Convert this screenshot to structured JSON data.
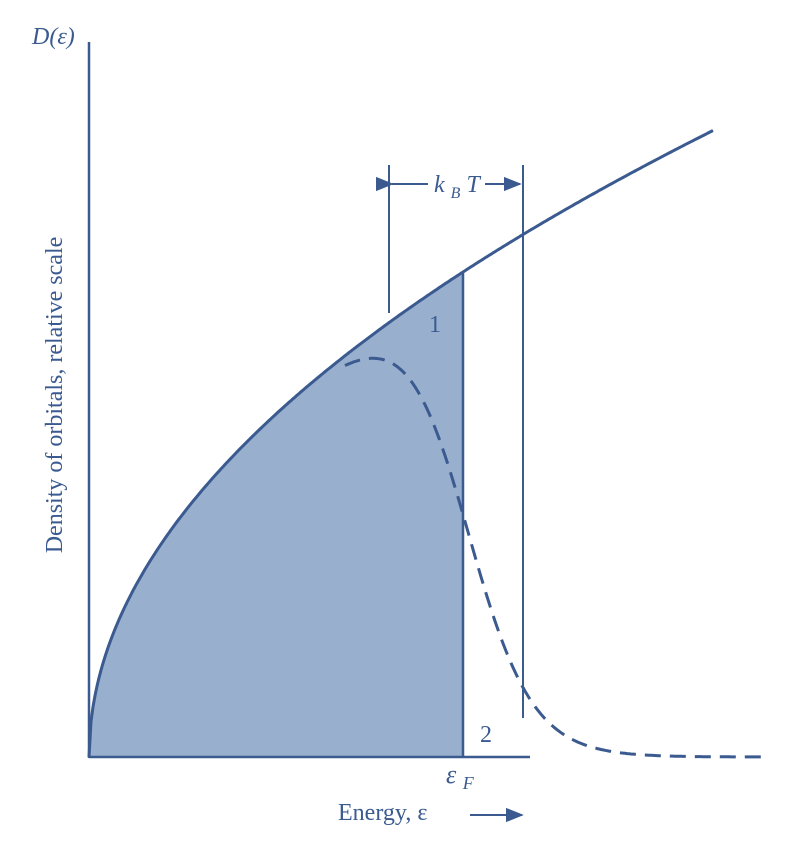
{
  "figure": {
    "colors": {
      "line": "#3a5a90",
      "fill": "#8da6c8",
      "text": "#3a5a90",
      "background": "#ffffff"
    },
    "y_axis_symbol": "D(ε)",
    "y_axis_label": "Density of orbitals, relative scale",
    "x_axis_label": "Energy, ε",
    "x_axis_arrow": "→",
    "fermi_label_main": "ε",
    "fermi_label_sub": "F",
    "kT_label_k": "k",
    "kT_label_sub": "B",
    "kT_label_T": "T",
    "region_1_label": "1",
    "region_2_label": "2",
    "curves": [
      {
        "name": "density-of-states",
        "style": "solid",
        "shape": "square-root"
      },
      {
        "name": "occupied-states-finite-T",
        "style": "dashed",
        "shape": "fermi-dirac-weighted"
      }
    ]
  }
}
